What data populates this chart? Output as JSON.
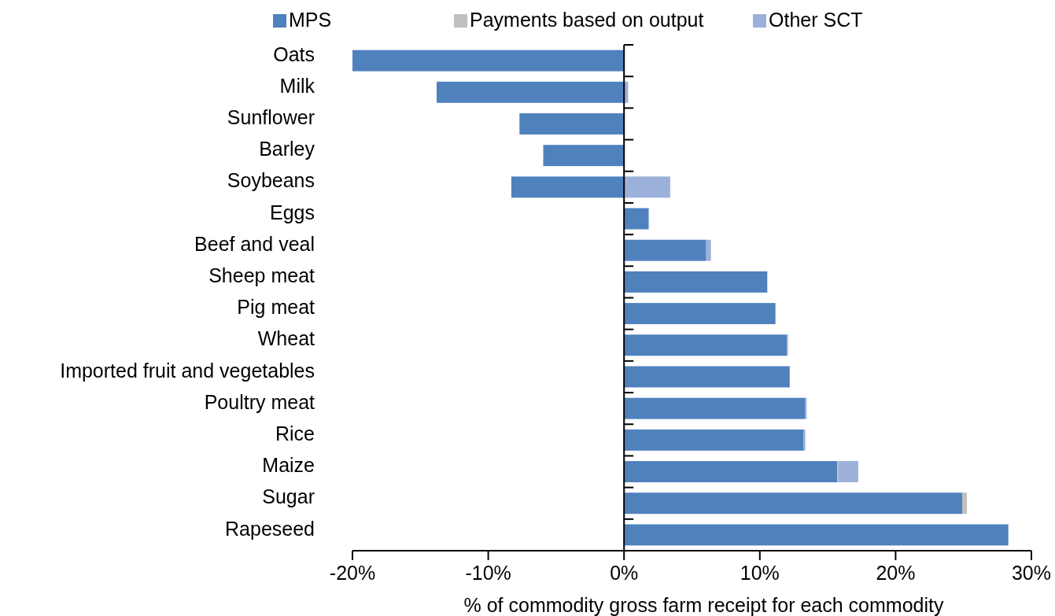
{
  "chart_data": {
    "type": "bar",
    "orientation": "horizontal",
    "stacked": true,
    "xlabel": "% of commodity gross farm receipt for each commodity",
    "categories": [
      "Oats",
      "Milk",
      "Sunflower",
      "Barley",
      "Soybeans",
      "Eggs",
      "Beef and veal",
      "Sheep meat",
      "Pig meat",
      "Wheat",
      "Imported fruit and vegetables",
      "Poultry meat",
      "Rice",
      "Maize",
      "Sugar",
      "Rapeseed"
    ],
    "series": [
      {
        "name": "MPS",
        "color": "#4f81bd",
        "values": [
          -20.0,
          -13.8,
          -7.7,
          -5.95,
          -8.3,
          1.8,
          6.05,
          10.55,
          11.15,
          12.0,
          12.2,
          13.35,
          13.2,
          15.7,
          24.9,
          28.3
        ]
      },
      {
        "name": "Payments based on output",
        "color": "#c0c0c0",
        "values": [
          0,
          0,
          0,
          0,
          0,
          0,
          0,
          0,
          0,
          0.1,
          0,
          0,
          0,
          0.1,
          0.35,
          0
        ]
      },
      {
        "name": "Other SCT",
        "color": "#9bb1db",
        "values": [
          0,
          0.3,
          0,
          0,
          3.4,
          0.05,
          0.35,
          0,
          0,
          0,
          0,
          0.1,
          0.15,
          1.45,
          0,
          0
        ]
      }
    ],
    "xlim": [
      -20,
      30
    ],
    "xticks": [
      {
        "value": -20,
        "label": "-20%"
      },
      {
        "value": -10,
        "label": "-10%"
      },
      {
        "value": 0,
        "label": "0%"
      },
      {
        "value": 10,
        "label": "10%"
      },
      {
        "value": 20,
        "label": "20%"
      },
      {
        "value": 30,
        "label": "30%"
      }
    ],
    "legend": "top"
  }
}
